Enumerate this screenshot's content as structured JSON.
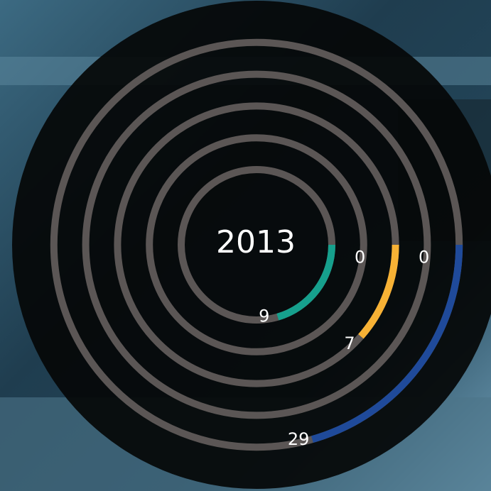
{
  "chart_data": {
    "type": "radial",
    "title": "2013",
    "track_color": "#5b5655",
    "rings": [
      {
        "value": 9,
        "color": "#16a08d",
        "lim": [
          0,
          44
        ]
      },
      {
        "value": 0,
        "color": "#16a08d"
      },
      {
        "value": 7,
        "color": "#f7b235",
        "lim": [
          0,
          61
        ]
      },
      {
        "value": 0,
        "color": "#f7b235"
      },
      {
        "value": 29,
        "color": "#1f4a9a",
        "lim": [
          0,
          141
        ]
      }
    ]
  }
}
